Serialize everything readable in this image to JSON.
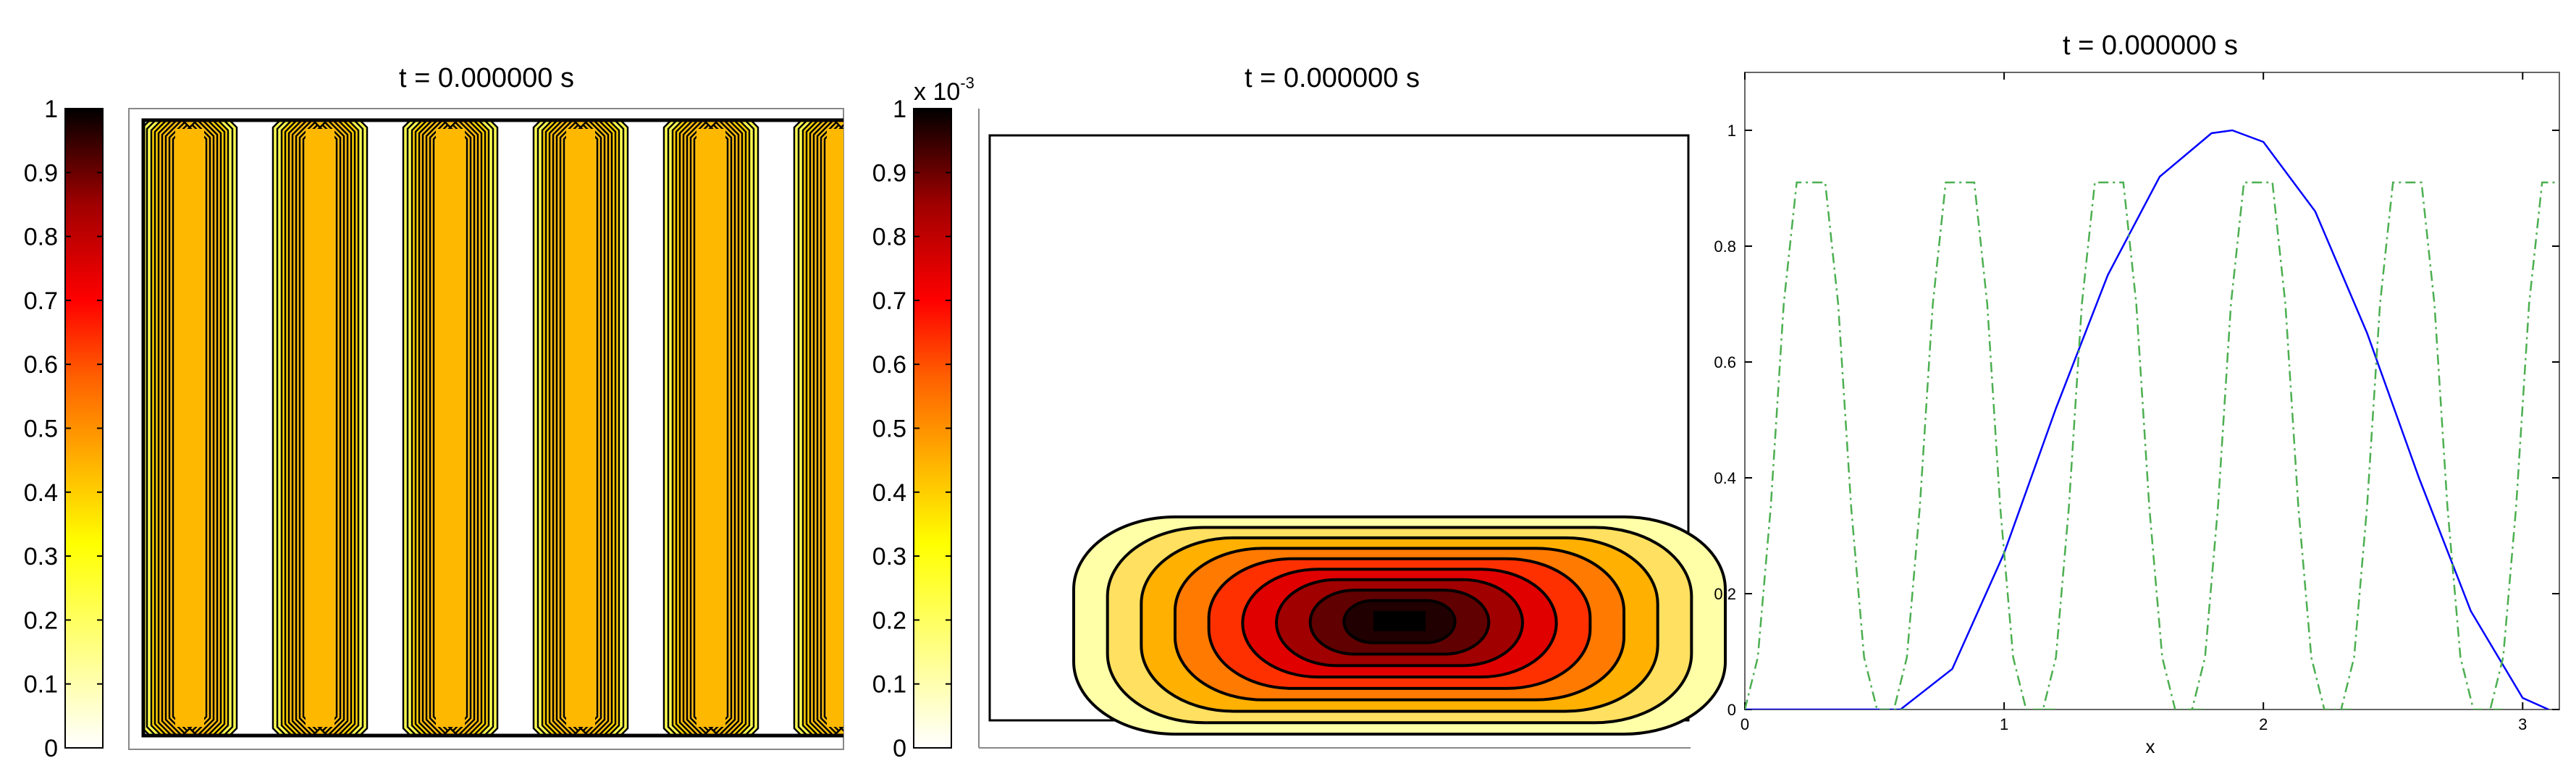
{
  "figure": {
    "panels": [
      {
        "title": "t = 0.000000 s"
      },
      {
        "title": "t = 0.000000 s"
      },
      {
        "title": "t = 0.000000 s"
      }
    ]
  },
  "colorbar_1": {
    "ticks": [
      "0",
      "0.1",
      "0.2",
      "0.3",
      "0.4",
      "0.5",
      "0.6",
      "0.7",
      "0.8",
      "0.9",
      "1"
    ],
    "exponent_prefix": ""
  },
  "colorbar_2": {
    "ticks": [
      "0",
      "0.1",
      "0.2",
      "0.3",
      "0.4",
      "0.5",
      "0.6",
      "0.7",
      "0.8",
      "0.9",
      "1"
    ],
    "exponent_prefix": "x 10",
    "exponent_power": "-3"
  },
  "colormap": [
    "#ffffff",
    "#ffff60",
    "#ffd000",
    "#ff9000",
    "#ff3000",
    "#d00000",
    "#800000",
    "#000000"
  ],
  "chart_data": [
    {
      "type": "heatmap",
      "title": "t = 0.000000 s",
      "description_values": {
        "stripes": 6,
        "stripe_level": 0.45
      },
      "clim": [
        0,
        1
      ]
    },
    {
      "type": "heatmap",
      "title": "t = 0.000000 s",
      "description_values": {
        "contour_levels": 9
      },
      "clim": [
        0,
        0.001
      ]
    },
    {
      "type": "line",
      "title": "t = 0.000000 s",
      "xlabel": "x",
      "ylabel": "",
      "xlim": [
        0,
        3.14159
      ],
      "ylim": [
        0,
        1.1
      ],
      "xticks": [
        "0",
        "1",
        "2",
        "3"
      ],
      "yticks": [
        "0",
        "0.2",
        "0.4",
        "0.6",
        "0.8",
        "1"
      ],
      "series": [
        {
          "style": "solid",
          "color": "#0000ff",
          "x": [
            0,
            0.6,
            0.8,
            1.0,
            1.2,
            1.4,
            1.6,
            1.8,
            1.88,
            2.0,
            2.2,
            2.4,
            2.6,
            2.8,
            3.0,
            3.1
          ],
          "values": [
            0,
            0,
            0.07,
            0.27,
            0.52,
            0.75,
            0.92,
            0.995,
            1.0,
            0.98,
            0.86,
            0.65,
            0.4,
            0.17,
            0.02,
            0
          ]
        },
        {
          "style": "dashdot",
          "color": "#4caf50",
          "x": [
            0,
            0.05,
            0.1,
            0.15,
            0.2,
            0.25,
            0.31,
            0.36,
            0.41,
            0.46,
            0.51,
            0.56,
            0.62
          ],
          "values": [
            0,
            0.09,
            0.35,
            0.7,
            0.91,
            0.91,
            0.91,
            0.7,
            0.35,
            0.09,
            0,
            0,
            0
          ],
          "period": 0.575,
          "repeats": 6
        }
      ]
    }
  ]
}
